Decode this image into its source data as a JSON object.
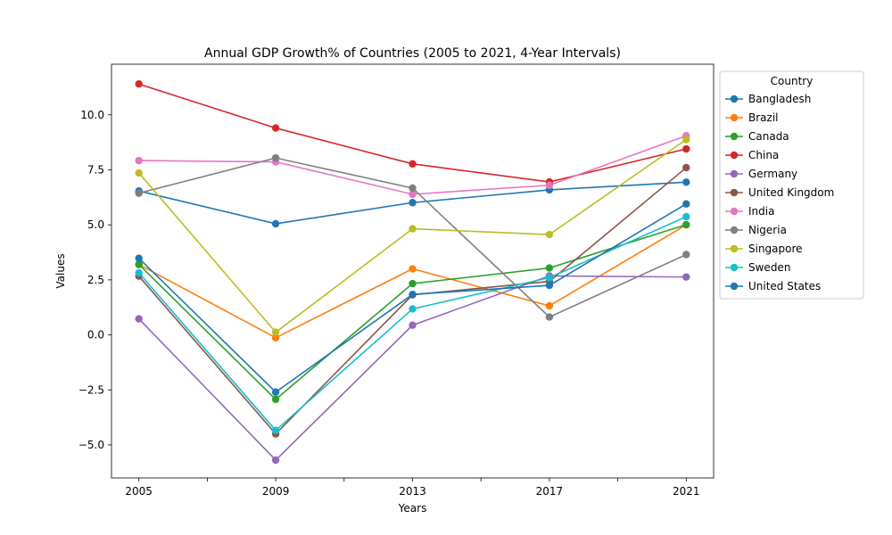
{
  "chart_data": {
    "type": "line",
    "title": "Annual GDP Growth% of Countries (2005 to 2021, 4-Year Intervals)",
    "xlabel": "Years",
    "ylabel": "Values",
    "x": [
      "2005",
      "2009",
      "2013",
      "2017",
      "2021"
    ],
    "xlim": [
      -0.2,
      4.2
    ],
    "ylim": [
      -6.5,
      12.3
    ],
    "yticks": [
      -5.0,
      -2.5,
      0.0,
      2.5,
      5.0,
      7.5,
      10.0
    ],
    "ytick_labels": [
      "−5.0",
      "−2.5",
      "0.0",
      "2.5",
      "5.0",
      "7.5",
      "10.0"
    ],
    "minor_xticks": [
      0.5,
      1.5,
      2.5,
      3.5
    ],
    "grid": false,
    "legend": {
      "title": "Country",
      "placement": "outside-right-top"
    },
    "series": [
      {
        "name": "Bangladesh",
        "color": "#1f77b4",
        "values": [
          6.54,
          5.05,
          6.01,
          6.59,
          6.94
        ]
      },
      {
        "name": "Brazil",
        "color": "#ff7f0e",
        "values": [
          3.2,
          -0.13,
          3.0,
          1.32,
          5.0
        ]
      },
      {
        "name": "Canada",
        "color": "#2ca02c",
        "values": [
          3.2,
          -2.93,
          2.33,
          3.04,
          5.01
        ]
      },
      {
        "name": "China",
        "color": "#d62728",
        "values": [
          11.4,
          9.4,
          7.77,
          6.95,
          8.45
        ]
      },
      {
        "name": "Germany",
        "color": "#9467bd",
        "values": [
          0.73,
          -5.69,
          0.44,
          2.68,
          2.63
        ]
      },
      {
        "name": "United Kingdom",
        "color": "#8c564b",
        "values": [
          2.67,
          -4.5,
          1.82,
          2.43,
          7.6
        ]
      },
      {
        "name": "India",
        "color": "#e377c2",
        "values": [
          7.92,
          7.86,
          6.39,
          6.8,
          9.05
        ]
      },
      {
        "name": "Nigeria",
        "color": "#7f7f7f",
        "values": [
          6.44,
          8.04,
          6.67,
          0.81,
          3.65
        ]
      },
      {
        "name": "Singapore",
        "color": "#bcbd22",
        "values": [
          7.36,
          0.12,
          4.82,
          4.56,
          8.88
        ]
      },
      {
        "name": "Sweden",
        "color": "#17becf",
        "values": [
          2.82,
          -4.34,
          1.18,
          2.6,
          5.37
        ]
      },
      {
        "name": "United States",
        "color": "#1f77b4",
        "values": [
          3.48,
          -2.6,
          1.84,
          2.25,
          5.95
        ]
      }
    ]
  }
}
